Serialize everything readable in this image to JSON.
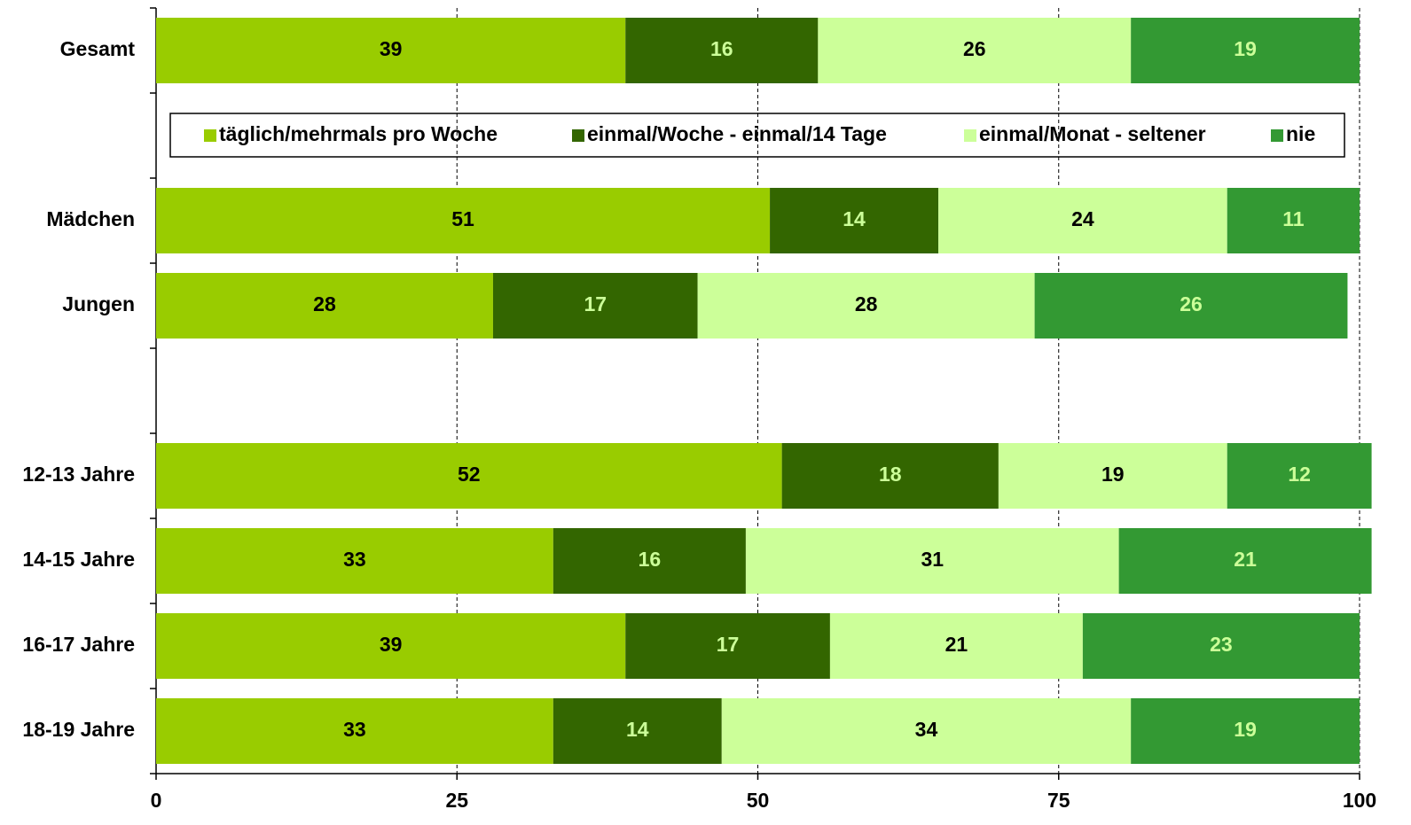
{
  "chart_data": {
    "type": "stacked_bar_horizontal",
    "categories": [
      "Gesamt",
      null,
      "Mädchen",
      "Jungen",
      null,
      "12-13 Jahre",
      "14-15 Jahre",
      "16-17 Jahre",
      "18-19 Jahre"
    ],
    "series": [
      {
        "name": "täglich/mehrmals pro Woche",
        "color": "#99cc00",
        "label_color": "#000000",
        "values": [
          39,
          null,
          51,
          28,
          null,
          52,
          33,
          39,
          33
        ]
      },
      {
        "name": "einmal/Woche - einmal/14 Tage",
        "color": "#336600",
        "label_color": "#ccff99",
        "values": [
          16,
          null,
          14,
          17,
          null,
          18,
          16,
          17,
          14
        ]
      },
      {
        "name": "einmal/Monat - seltener",
        "color": "#ccff99",
        "label_color": "#000000",
        "values": [
          26,
          null,
          24,
          28,
          null,
          19,
          31,
          21,
          34
        ]
      },
      {
        "name": "nie",
        "color": "#339933",
        "label_color": "#ccff99",
        "values": [
          19,
          null,
          11,
          26,
          null,
          12,
          21,
          23,
          19
        ]
      }
    ],
    "xlim": [
      0,
      100
    ],
    "xticks": [
      0,
      25,
      50,
      75,
      100
    ],
    "grid": true
  }
}
